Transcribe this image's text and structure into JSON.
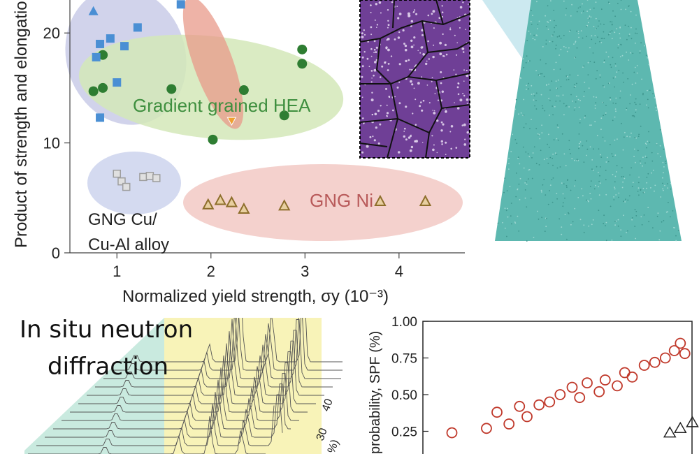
{
  "chart_data": [
    {
      "type": "scatter",
      "xlabel": "Normalized yield strength, σy (10⁻³)",
      "ylabel": "Product of strength and elongation",
      "xlim": [
        0.5,
        4.7
      ],
      "ylim": [
        0,
        23
      ],
      "xticks": [
        "1",
        "2",
        "3",
        "4"
      ],
      "yticks": [
        "0",
        "10",
        "20"
      ],
      "groups": [
        {
          "label": "Gradient grained HEA",
          "color": "#2e7d32",
          "fill": "#d4e8b8",
          "points": [
            [
              0.75,
              14.7
            ],
            [
              0.85,
              18
            ],
            [
              0.85,
              15
            ],
            [
              1.58,
              14.9
            ],
            [
              2.02,
              10.3
            ],
            [
              2.35,
              14.8
            ],
            [
              2.78,
              12.5
            ],
            [
              2.97,
              18.5
            ],
            [
              2.97,
              17.2
            ]
          ]
        },
        {
          "label": "GNG Ni",
          "color": "#8d6e2b",
          "fill": "#f2c9c4",
          "points": [
            [
              1.97,
              4.4
            ],
            [
              2.1,
              4.8
            ],
            [
              2.22,
              4.6
            ],
            [
              2.35,
              4.0
            ],
            [
              2.78,
              4.3
            ],
            [
              3.8,
              4.7
            ],
            [
              4.28,
              4.7
            ]
          ]
        },
        {
          "label": "GNG Cu/\nCu-Al alloy",
          "color": "#9e9e9e",
          "fill": "#cfd6ee",
          "points": [
            [
              1.0,
              7.2
            ],
            [
              1.05,
              6.5
            ],
            [
              1.1,
              6.0
            ],
            [
              1.28,
              6.9
            ],
            [
              1.35,
              7.0
            ],
            [
              1.42,
              6.8
            ]
          ]
        },
        {
          "label": "",
          "color": "#4a8fd4",
          "fill": "#c9cbe8",
          "points": [
            [
              0.78,
              17.8
            ],
            [
              0.82,
              19.0
            ],
            [
              0.93,
              19.5
            ],
            [
              1.0,
              15.5
            ],
            [
              1.08,
              18.8
            ],
            [
              1.22,
              20.5
            ],
            [
              0.82,
              12.3
            ],
            [
              1.68,
              22.6
            ]
          ]
        }
      ],
      "special_points": [
        [
          0.75,
          22
        ],
        [
          2.22,
          12
        ]
      ]
    },
    {
      "type": "scatter",
      "ylabel": "probability, SPF (%)",
      "ylim": [
        0,
        1.0
      ],
      "yticks": [
        "0.25",
        "0.50",
        "0.75",
        "1.00"
      ],
      "series": [
        {
          "marker": "circle",
          "color": "#c0392b",
          "points": [
            [
              0.1,
              0.24
            ],
            [
              0.33,
              0.27
            ],
            [
              0.4,
              0.38
            ],
            [
              0.48,
              0.3
            ],
            [
              0.55,
              0.42
            ],
            [
              0.6,
              0.35
            ],
            [
              0.68,
              0.43
            ],
            [
              0.75,
              0.45
            ],
            [
              0.82,
              0.5
            ],
            [
              0.9,
              0.55
            ],
            [
              0.95,
              0.48
            ],
            [
              1.0,
              0.58
            ],
            [
              1.08,
              0.52
            ],
            [
              1.12,
              0.6
            ],
            [
              1.2,
              0.56
            ],
            [
              1.25,
              0.65
            ],
            [
              1.3,
              0.62
            ],
            [
              1.38,
              0.7
            ],
            [
              1.45,
              0.72
            ],
            [
              1.52,
              0.75
            ],
            [
              1.58,
              0.8
            ],
            [
              1.62,
              0.85
            ],
            [
              1.65,
              0.78
            ]
          ]
        },
        {
          "marker": "triangle",
          "color": "#222222",
          "points": [
            [
              1.55,
              0.24
            ],
            [
              1.62,
              0.27
            ],
            [
              1.7,
              0.31
            ]
          ]
        }
      ]
    },
    {
      "type": "line",
      "yaxis_ticks": [
        "30",
        "40"
      ],
      "yaxis_unit": "%)"
    }
  ],
  "captions": {
    "neutron_line1": "In situ neutron",
    "neutron_line2": "diffraction"
  },
  "colors": {
    "hea_fill": "#d4e8b8",
    "ni_fill": "#f2c9c4",
    "cu_fill": "#cfd6ee",
    "blue_fill": "#c9cbe8",
    "grain_purple": "#6f3f96",
    "sim_teal": "#5db8b0",
    "neutron_yellow": "#f8f3b8",
    "neutron_teal": "#c9eadf"
  }
}
